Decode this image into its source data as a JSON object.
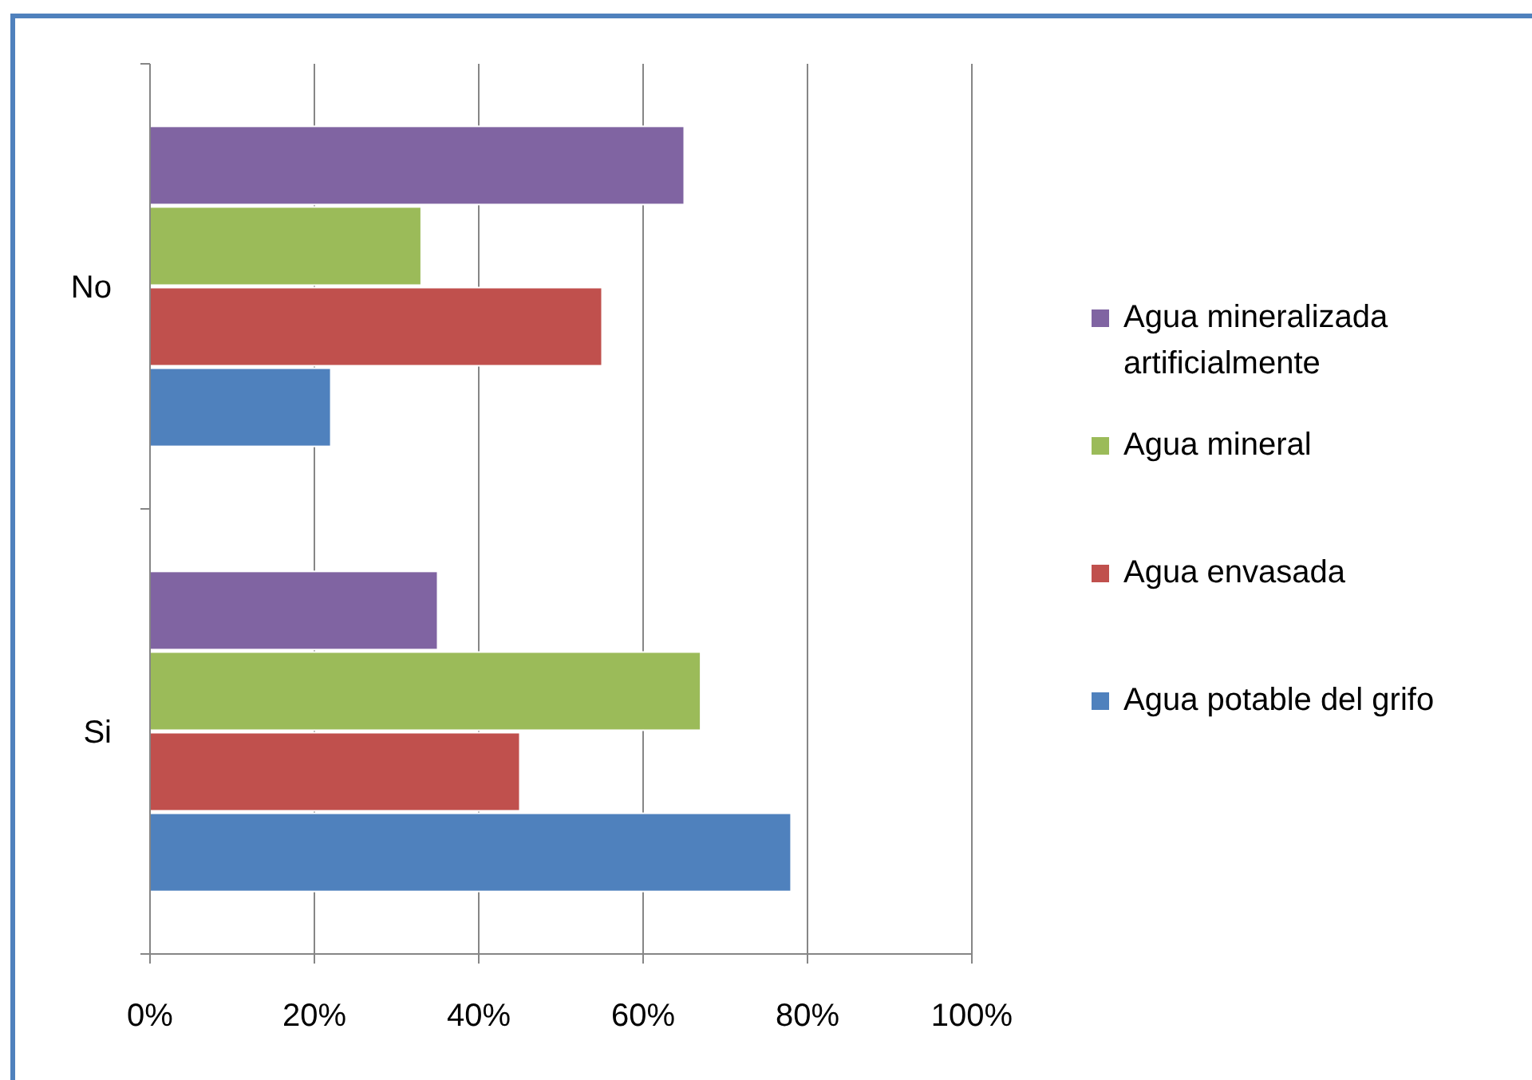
{
  "chart_data": {
    "type": "bar",
    "orientation": "horizontal",
    "categories": [
      "No",
      "Si"
    ],
    "series": [
      {
        "name": "Agua mineralizada artificialmente",
        "color": "#8064a2",
        "values": [
          65,
          35
        ]
      },
      {
        "name": "Agua mineral",
        "color": "#9bbb59",
        "values": [
          33,
          67
        ]
      },
      {
        "name": "Agua envasada",
        "color": "#c0504d",
        "values": [
          55,
          45
        ]
      },
      {
        "name": "Agua potable del grifo",
        "color": "#4f81bd",
        "values": [
          22,
          78
        ]
      }
    ],
    "xlim": [
      0,
      100
    ],
    "xticks": [
      {
        "value": 0,
        "label": "0%"
      },
      {
        "value": 20,
        "label": "20%"
      },
      {
        "value": 40,
        "label": "40%"
      },
      {
        "value": 60,
        "label": "60%"
      },
      {
        "value": 80,
        "label": "80%"
      },
      {
        "value": 100,
        "label": "100%"
      }
    ],
    "grid": "x",
    "legend": "right"
  }
}
